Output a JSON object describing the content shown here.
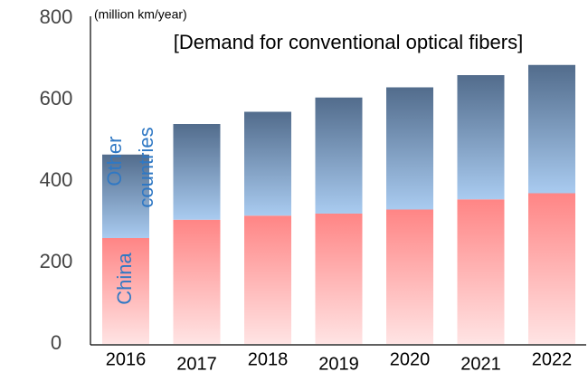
{
  "chart_data": {
    "type": "stacked_bar",
    "title": "[Demand for conventional optical fibers]",
    "y_label": "(million km/year)",
    "categories": [
      "2016",
      "2017",
      "2018",
      "2019",
      "2020",
      "2021",
      "2022"
    ],
    "series": [
      {
        "name": "China",
        "color": "#ff8585",
        "values": [
          260,
          305,
          315,
          320,
          330,
          355,
          370
        ]
      },
      {
        "name": "Other countries",
        "color": "#526c8c",
        "values": [
          205,
          235,
          255,
          285,
          300,
          305,
          315
        ]
      }
    ],
    "ylim": [
      0,
      800
    ],
    "yticks": [
      0,
      200,
      400,
      600,
      800
    ],
    "grid": false
  }
}
